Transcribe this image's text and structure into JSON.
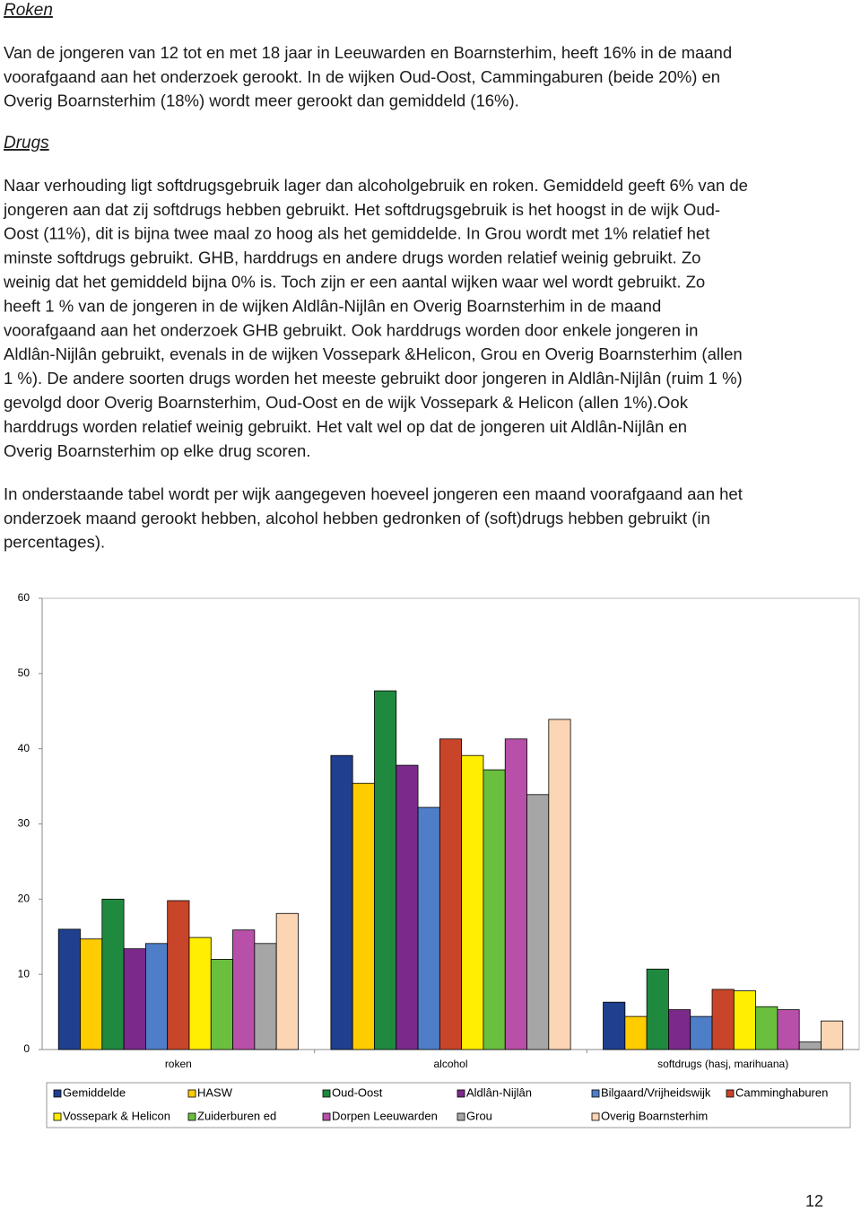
{
  "document": {
    "section1_title": "Roken",
    "section1_lines": [
      "Van de jongeren van 12 tot en met 18 jaar in Leeuwarden en Boarnsterhim, heeft 16% in de maand",
      "voorafgaand aan het onderzoek gerookt. In de wijken Oud-Oost, Cammingaburen (beide 20%) en",
      "Overig Boarnsterhim (18%) wordt meer gerookt dan gemiddeld (16%)."
    ],
    "section2_title": "Drugs",
    "section2_lines": [
      "Naar verhouding ligt softdrugsgebruik lager dan alcoholgebruik en roken. Gemiddeld geeft 6% van de",
      "jongeren aan dat zij softdrugs hebben gebruikt. Het softdrugsgebruik is het hoogst in de wijk Oud-",
      "Oost (11%), dit is bijna twee maal zo hoog als het gemiddelde. In Grou wordt met 1% relatief het",
      "minste softdrugs gebruikt. GHB, harddrugs en andere drugs worden relatief weinig gebruikt. Zo",
      "weinig dat het gemiddeld bijna 0% is. Toch zijn er een aantal wijken waar wel wordt gebruikt. Zo",
      "heeft 1 % van de jongeren in de wijken Aldlân-Nijlân en Overig Boarnsterhim in de maand",
      "voorafgaand aan het onderzoek GHB gebruikt. Ook harddrugs worden door enkele jongeren in",
      "Aldlân-Nijlân gebruikt, evenals in de wijken Vossepark &Helicon, Grou en Overig Boarnsterhim (allen",
      "1 %). De andere soorten drugs worden het meeste gebruikt door jongeren in Aldlân-Nijlân (ruim 1 %)",
      "gevolgd door Overig Boarnsterhim, Oud-Oost en de wijk Vossepark & Helicon (allen 1%).Ook",
      "harddrugs worden relatief weinig gebruikt. Het valt wel op dat de jongeren uit Aldlân-Nijlân en",
      "Overig Boarnsterhim op elke drug scoren."
    ],
    "intro_lines": [
      "In onderstaande tabel wordt per wijk aangegeven hoeveel jongeren een maand voorafgaand aan het",
      "onderzoek maand gerookt hebben, alcohol hebben gedronken of (soft)drugs hebben gebruikt (in",
      "percentages)."
    ],
    "page_number": "12"
  },
  "chart_data": {
    "type": "bar",
    "categories": [
      "roken",
      "alcohol",
      "softdrugs (hasj, marihuana)"
    ],
    "series": [
      {
        "name": "Gemiddelde",
        "color": "#1f3f8f",
        "values": [
          16,
          39.1,
          6.3
        ]
      },
      {
        "name": "HASW",
        "color": "#ffcc00",
        "values": [
          14.7,
          35.4,
          4.4
        ]
      },
      {
        "name": "Oud-Oost",
        "color": "#1f8a3f",
        "values": [
          20,
          47.7,
          10.7
        ]
      },
      {
        "name": "Aldlân-Nijlân",
        "color": "#7b2a8c",
        "values": [
          13.4,
          37.8,
          5.3
        ]
      },
      {
        "name": "Bilgaard/Vrijheidswijk",
        "color": "#4f7ec8",
        "values": [
          14.1,
          32.2,
          4.4
        ]
      },
      {
        "name": "Camminghaburen",
        "color": "#c8452a",
        "values": [
          19.8,
          41.3,
          8.0
        ]
      },
      {
        "name": "Vossepark & Helicon",
        "color": "#ffee00",
        "values": [
          14.9,
          39.1,
          7.8
        ]
      },
      {
        "name": "Zuiderburen ed",
        "color": "#6abf3f",
        "values": [
          12,
          37.2,
          5.7
        ]
      },
      {
        "name": "Dorpen Leeuwarden",
        "color": "#b84fa8",
        "values": [
          15.9,
          41.3,
          5.3
        ]
      },
      {
        "name": "Grou",
        "color": "#a6a6a6",
        "values": [
          14.1,
          33.9,
          1.0
        ]
      },
      {
        "name": "Overig Boarnsterhim",
        "color": "#fcd5b5",
        "values": [
          18.1,
          43.9,
          3.8
        ]
      }
    ],
    "ylim": [
      0,
      60
    ],
    "yticks": [
      0,
      10,
      20,
      30,
      40,
      50,
      60
    ],
    "grid": false,
    "legend": "bottom"
  }
}
